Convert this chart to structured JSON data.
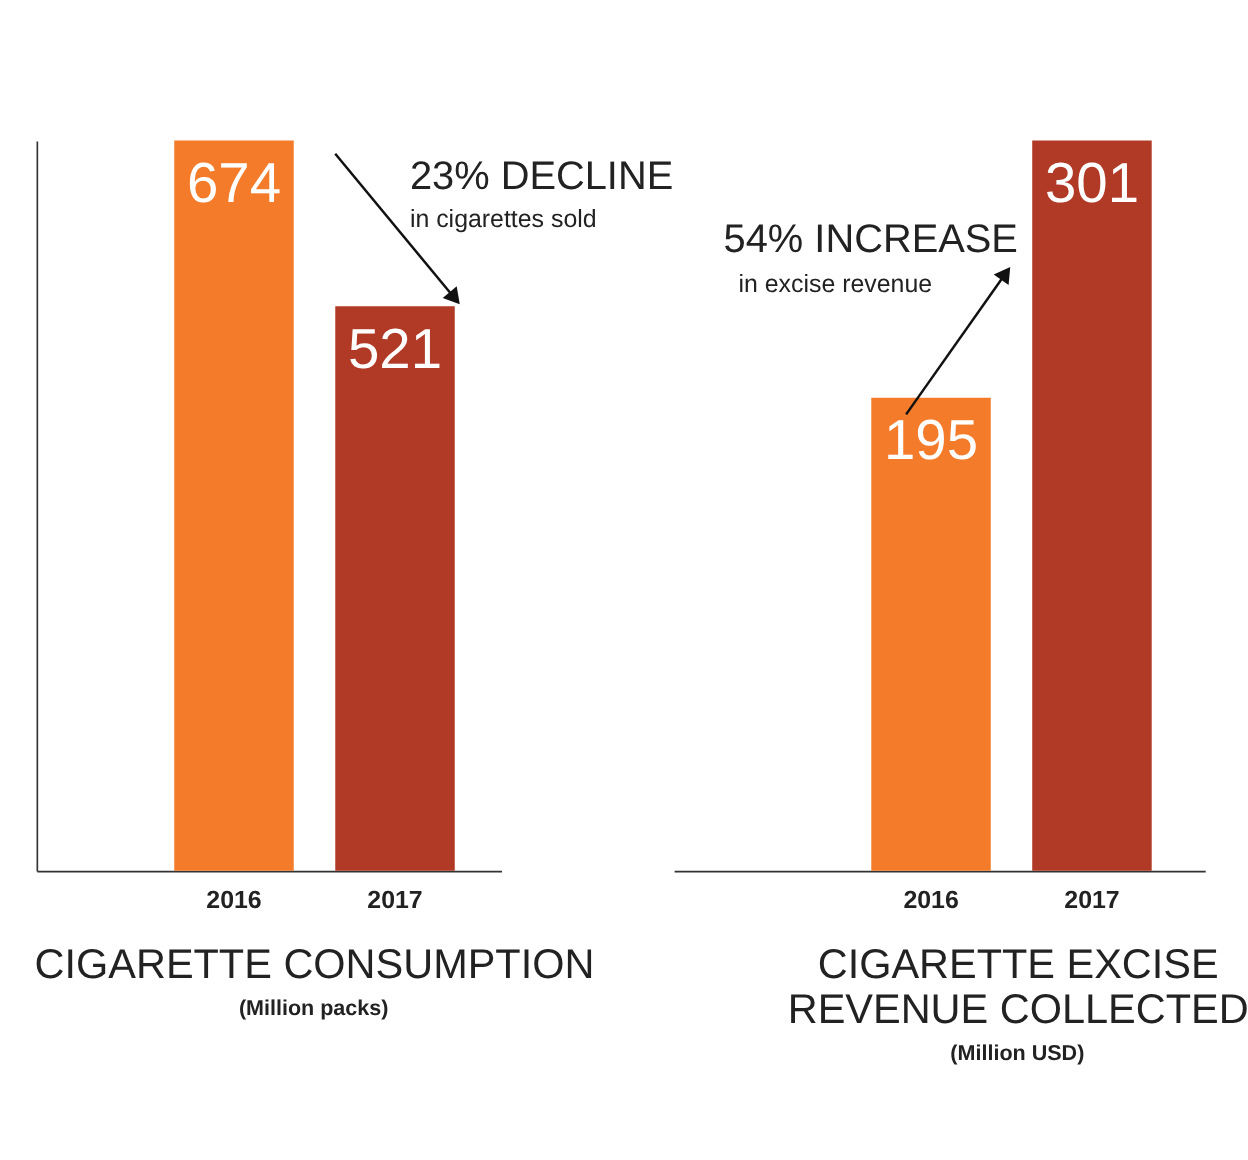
{
  "chart_data": [
    {
      "type": "bar",
      "categories": [
        "2016",
        "2017"
      ],
      "values": [
        674,
        521
      ],
      "colors": [
        "#f47b2a",
        "#b03a26"
      ],
      "xlabel": "CIGARETTE CONSUMPTION",
      "annotations": [
        "(Million packs)",
        "23% DECLINE",
        "in cigarettes sold"
      ],
      "data_labels": true,
      "tick_labels": "x",
      "grid": false,
      "legend": false
    },
    {
      "type": "bar",
      "categories": [
        "2016",
        "2017"
      ],
      "values": [
        195,
        301
      ],
      "colors": [
        "#f47b2a",
        "#b03a26"
      ],
      "xlabel": "CIGARETTE EXCISE\nREVENUE COLLECTED",
      "annotations": [
        "(Million USD)",
        "54% INCREASE",
        "in excise revenue"
      ],
      "data_labels": true,
      "tick_labels": "x",
      "grid": false,
      "legend": false
    }
  ]
}
